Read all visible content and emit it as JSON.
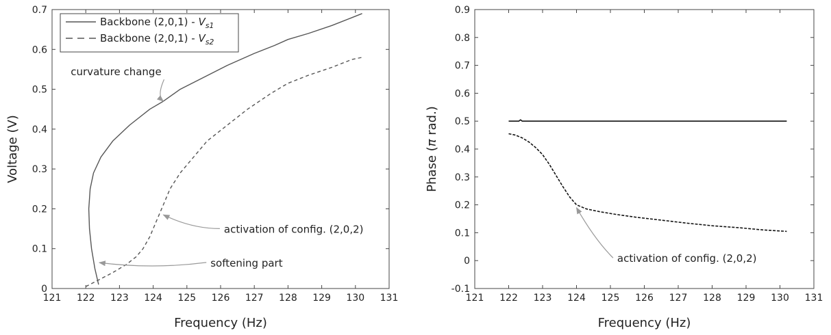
{
  "chart_data": [
    {
      "type": "line",
      "xlabel": "Frequency (Hz)",
      "ylabel": "Voltage (V)",
      "xlim": [
        121,
        131
      ],
      "ylim": [
        0,
        0.7
      ],
      "xticks": [
        121,
        122,
        123,
        124,
        125,
        126,
        127,
        128,
        129,
        130,
        131
      ],
      "yticks": [
        0,
        0.1,
        0.2,
        0.3,
        0.4,
        0.5,
        0.6,
        0.7
      ],
      "xtick_labels": [
        "121",
        "122",
        "123",
        "124",
        "125",
        "126",
        "127",
        "128",
        "129",
        "130",
        "131"
      ],
      "ytick_labels": [
        "0",
        "0.1",
        "0.2",
        "0.3",
        "0.4",
        "0.5",
        "0.6",
        "0.7"
      ],
      "legend": {
        "placement": "top-left",
        "entries": [
          {
            "prefix": "Backbone (2,0,1) - ",
            "var": "V",
            "sub": "s1",
            "style": "solid"
          },
          {
            "prefix": "Backbone (2,0,1) - ",
            "var": "V",
            "sub": "s2",
            "style": "dashed"
          }
        ]
      },
      "series": [
        {
          "style": "solid",
          "color": "#555555",
          "x": [
            122.38,
            122.27,
            122.17,
            122.11,
            122.09,
            122.13,
            122.23,
            122.45,
            122.8,
            123.3,
            123.9,
            124.3,
            124.8,
            125.5,
            126.2,
            127.0,
            127.6,
            128.0,
            128.6,
            129.3,
            129.9,
            130.2
          ],
          "y": [
            0.01,
            0.05,
            0.1,
            0.15,
            0.2,
            0.25,
            0.29,
            0.33,
            0.37,
            0.41,
            0.45,
            0.47,
            0.5,
            0.53,
            0.56,
            0.59,
            0.61,
            0.625,
            0.64,
            0.66,
            0.68,
            0.69
          ]
        },
        {
          "style": "dashed",
          "color": "#555555",
          "x": [
            122.0,
            122.35,
            122.8,
            123.2,
            123.5,
            123.7,
            123.9,
            124.1,
            124.3,
            124.5,
            124.8,
            125.2,
            125.6,
            126.2,
            126.8,
            127.5,
            128.0,
            128.6,
            129.3,
            129.9,
            130.2
          ],
          "y": [
            0.005,
            0.02,
            0.04,
            0.06,
            0.08,
            0.1,
            0.13,
            0.17,
            0.21,
            0.25,
            0.29,
            0.33,
            0.37,
            0.41,
            0.45,
            0.49,
            0.515,
            0.535,
            0.555,
            0.575,
            0.58
          ]
        }
      ],
      "annotations": [
        {
          "text": "curvature change",
          "x": 122.9,
          "y": 0.535,
          "ax": 124.3,
          "ay": 0.47,
          "anchor": "middle"
        },
        {
          "text": "activation of config. (2,0,2)",
          "x": 126.1,
          "y": 0.14,
          "ax": 124.3,
          "ay": 0.185,
          "anchor": "start"
        },
        {
          "text": "softening part",
          "x": 125.7,
          "y": 0.055,
          "ax": 122.4,
          "ay": 0.065,
          "anchor": "start"
        }
      ]
    },
    {
      "type": "line",
      "xlabel": "Frequency (Hz)",
      "ylabel_prefix": "Phase (",
      "ylabel_pi": "π",
      "ylabel_suffix": " rad.)",
      "xlim": [
        121,
        131
      ],
      "ylim": [
        -0.1,
        0.9
      ],
      "xticks": [
        121,
        122,
        123,
        124,
        125,
        126,
        127,
        128,
        129,
        130,
        131
      ],
      "yticks": [
        -0.1,
        0,
        0.1,
        0.2,
        0.3,
        0.4,
        0.5,
        0.6,
        0.7,
        0.8,
        0.9
      ],
      "xtick_labels": [
        "121",
        "122",
        "123",
        "124",
        "125",
        "126",
        "127",
        "128",
        "129",
        "130",
        "131"
      ],
      "ytick_labels": [
        "-0.1",
        "0",
        "0.1",
        "0.2",
        "0.3",
        "0.4",
        "0.5",
        "0.6",
        "0.7",
        "0.8",
        "0.9"
      ],
      "series": [
        {
          "style": "solid",
          "color": "#111111",
          "x": [
            122.0,
            122.3,
            122.35,
            122.4,
            130.2
          ],
          "y": [
            0.5,
            0.5,
            0.505,
            0.5,
            0.5
          ]
        },
        {
          "style": "dashed",
          "color": "#111111",
          "x": [
            122.0,
            122.2,
            122.4,
            122.6,
            122.8,
            123.0,
            123.2,
            123.4,
            123.6,
            123.8,
            124.0,
            124.3,
            124.7,
            125.2,
            125.8,
            126.5,
            127.2,
            128.0,
            128.8,
            129.5,
            130.2
          ],
          "y": [
            0.455,
            0.45,
            0.44,
            0.425,
            0.405,
            0.38,
            0.345,
            0.305,
            0.265,
            0.228,
            0.2,
            0.185,
            0.175,
            0.165,
            0.155,
            0.145,
            0.135,
            0.125,
            0.118,
            0.11,
            0.105
          ]
        }
      ],
      "annotations": [
        {
          "text": "activation of config. (2,0,2)",
          "x": 125.2,
          "y": -0.005,
          "ax": 124.0,
          "ay": 0.19,
          "anchor": "start"
        }
      ]
    }
  ]
}
